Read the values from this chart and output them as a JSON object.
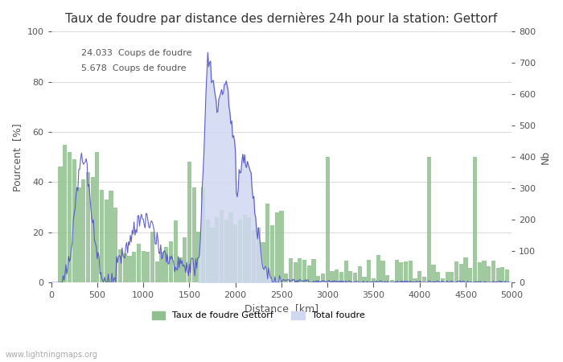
{
  "title": "Taux de foudre par distance des dernières 24h pour la station: Gettorf",
  "xlabel": "Distance  [km]",
  "ylabel_left": "Pourcent  [%]",
  "ylabel_right": "Nb",
  "annotation1": "24.033  Coups de foudre",
  "annotation2": "5.678  Coups de foudre",
  "xlim": [
    0,
    5000
  ],
  "ylim_left": [
    0,
    100
  ],
  "ylim_right": [
    0,
    800
  ],
  "yticks_left": [
    0,
    20,
    40,
    60,
    80,
    100
  ],
  "yticks_right": [
    0,
    100,
    200,
    300,
    400,
    500,
    600,
    700,
    800
  ],
  "xticks": [
    0,
    500,
    1000,
    1500,
    2000,
    2500,
    3000,
    3500,
    4000,
    4500,
    5000
  ],
  "bar_color": "#90c090",
  "fill_color": "#d0d8f0",
  "line_color": "#5050c8",
  "background_color": "#ffffff",
  "legend_label1": "Taux de foudre Gettorf",
  "legend_label2": "Total foudre",
  "watermark": "www.lightningmaps.org",
  "title_fontsize": 11,
  "axis_fontsize": 9,
  "tick_fontsize": 8
}
